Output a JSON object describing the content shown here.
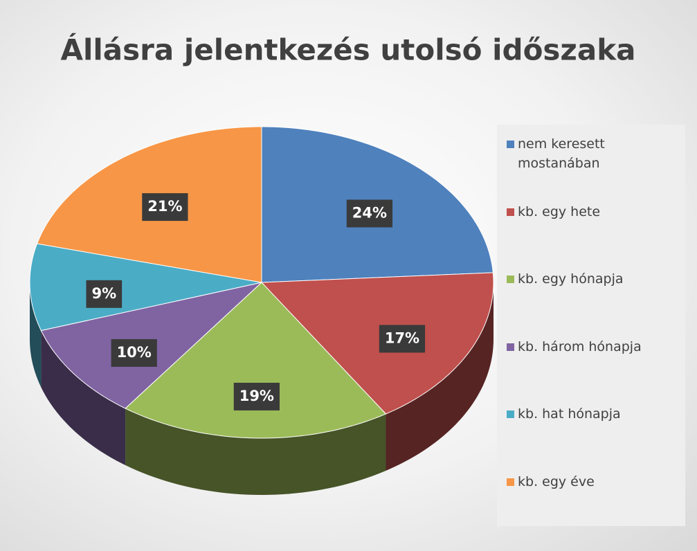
{
  "chart_data": {
    "type": "pie",
    "title": "Állásra jelentkezés utolsó időszaka",
    "categories": [
      "nem keresett mostanában",
      "kb. egy hete",
      "kb. egy hónapja",
      "kb. három hónapja",
      "kb. hat hónapja",
      "kb. egy éve"
    ],
    "values": [
      24,
      17,
      19,
      10,
      9,
      21
    ],
    "value_labels": [
      "24%",
      "17%",
      "19%",
      "10%",
      "9%",
      "21%"
    ],
    "colors": [
      "#4f81bd",
      "#c0504d",
      "#9bbb59",
      "#8064a2",
      "#4bacc6",
      "#f79646"
    ],
    "legend": "right"
  }
}
